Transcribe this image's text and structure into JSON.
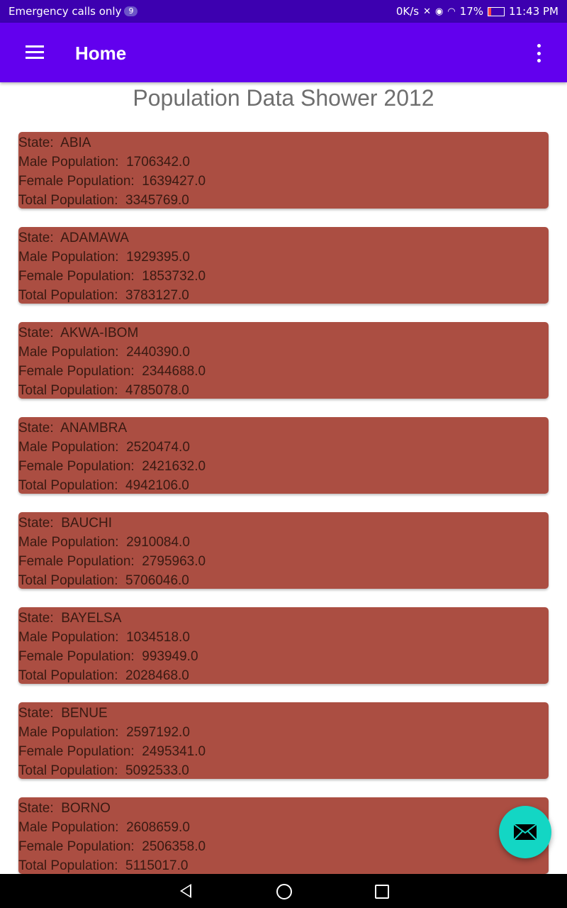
{
  "status_bar": {
    "carrier_text": "Emergency calls only",
    "notification_count": "9",
    "speed": "0K/s",
    "battery_percent": "17%",
    "time": "11:43 PM"
  },
  "app_bar": {
    "title": "Home"
  },
  "page": {
    "heading": "Population Data Shower 2012"
  },
  "labels": {
    "state": "State:  ",
    "male": "Male Population:  ",
    "female": "Female Population:  ",
    "total": "Total Population:  "
  },
  "records": [
    {
      "state": "ABIA",
      "male": "1706342.0",
      "female": "1639427.0",
      "total": "3345769.0"
    },
    {
      "state": "ADAMAWA",
      "male": "1929395.0",
      "female": "1853732.0",
      "total": "3783127.0"
    },
    {
      "state": "AKWA-IBOM",
      "male": "2440390.0",
      "female": "2344688.0",
      "total": "4785078.0"
    },
    {
      "state": "ANAMBRA",
      "male": "2520474.0",
      "female": "2421632.0",
      "total": "4942106.0"
    },
    {
      "state": "BAUCHI",
      "male": "2910084.0",
      "female": "2795963.0",
      "total": "5706046.0"
    },
    {
      "state": "BAYELSA",
      "male": "1034518.0",
      "female": "993949.0",
      "total": "2028468.0"
    },
    {
      "state": "BENUE",
      "male": "2597192.0",
      "female": "2495341.0",
      "total": "5092533.0"
    },
    {
      "state": "BORNO",
      "male": "2608659.0",
      "female": "2506358.0",
      "total": "5115017.0"
    }
  ],
  "colors": {
    "status_bar": "#3d00b0",
    "app_bar": "#6200ee",
    "card": "#ab4e42",
    "fab": "#13d6c4"
  },
  "icons": {
    "menu": "hamburger-menu-icon",
    "more": "more-vert-icon",
    "fab": "email-icon"
  }
}
